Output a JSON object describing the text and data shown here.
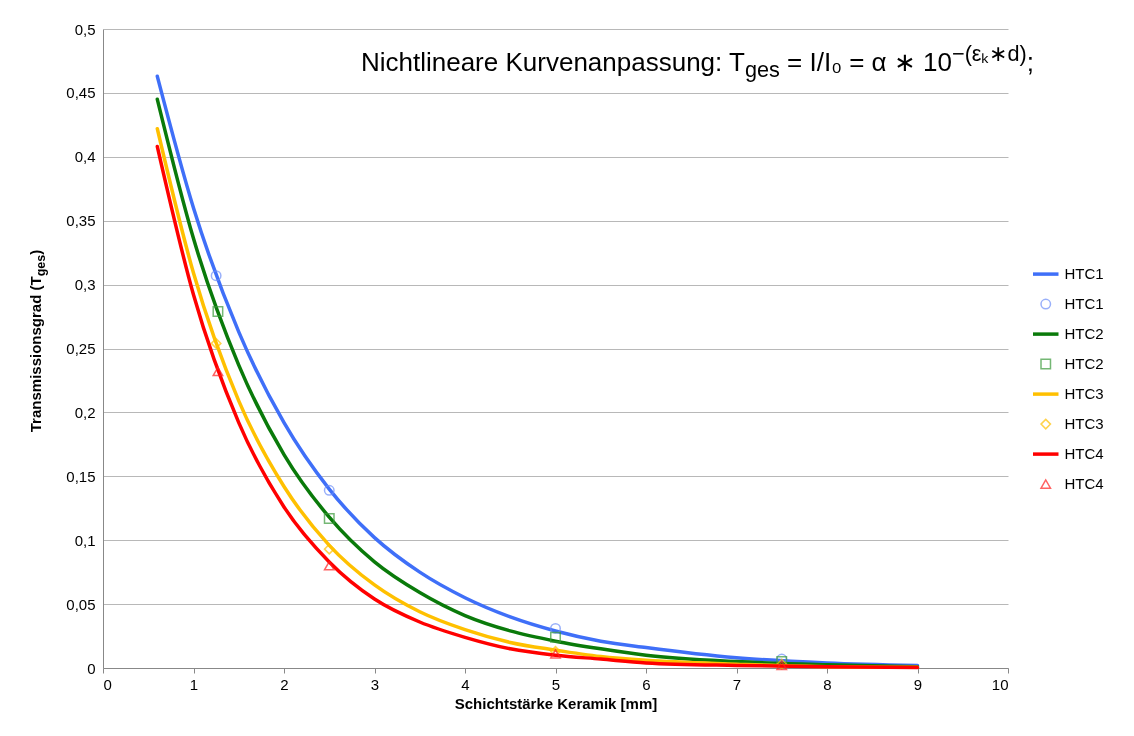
{
  "chart_data": {
    "type": "line",
    "title": "Nichtlineare Kurvenanpassung: T$_{ges}$ = I/I₀ = α ∗ 10$^{−(εₖ∗d)}$;",
    "xlabel": "Schichtstärke Keramik [mm]",
    "ylabel": "Transmissionsgrad (T$_{ges}$)",
    "xlim": [
      0,
      10
    ],
    "xticks": [
      0,
      1,
      2,
      3,
      4,
      5,
      6,
      7,
      8,
      9,
      10
    ],
    "ylim": [
      0,
      0.5
    ],
    "yticks": [
      0,
      {
        "value": 0.05,
        "label": "0,05"
      },
      {
        "value": 0.1,
        "label": "0,1"
      },
      {
        "value": 0.15,
        "label": "0,15"
      },
      {
        "value": 0.2,
        "label": "0,2"
      },
      {
        "value": 0.25,
        "label": "0,25"
      },
      {
        "value": 0.3,
        "label": "0,3"
      },
      {
        "value": 0.35,
        "label": "0,35"
      },
      {
        "value": 0.4,
        "label": "0,4"
      },
      {
        "value": 0.45,
        "label": "0,45"
      },
      {
        "value": 0.5,
        "label": "0,5"
      }
    ],
    "grid": "y",
    "legend": "right",
    "series": [
      {
        "name": "HTC1",
        "color": "#3f6ff8",
        "x": [
          0.6,
          1,
          1.5,
          2,
          2.5,
          3,
          3.5,
          4,
          4.5,
          5,
          5.5,
          6,
          7,
          8,
          9
        ],
        "values": [
          0.463,
          0.36,
          0.263,
          0.192,
          0.14,
          0.102,
          0.075,
          0.055,
          0.04,
          0.029,
          0.021,
          0.016,
          0.008,
          0.004,
          0.002
        ]
      },
      {
        "name": "HTC1",
        "type": "scatter",
        "marker": "circle",
        "color": "#6f8ff8",
        "x": [
          1.25,
          2.5,
          5,
          7.5
        ],
        "values": [
          0.307,
          0.139,
          0.031,
          0.007
        ]
      },
      {
        "name": "HTC2",
        "color": "#0a7a0a",
        "x": [
          0.6,
          1,
          1.5,
          2,
          2.5,
          3,
          3.5,
          4,
          4.5,
          5,
          5.5,
          6,
          7,
          8,
          9
        ],
        "values": [
          0.445,
          0.336,
          0.237,
          0.167,
          0.118,
          0.083,
          0.059,
          0.041,
          0.029,
          0.021,
          0.015,
          0.01,
          0.005,
          0.0025,
          0.001
        ]
      },
      {
        "name": "HTC2",
        "type": "scatter",
        "marker": "square",
        "color": "#3a9a3a",
        "x": [
          1.27,
          2.5,
          5,
          7.5
        ],
        "values": [
          0.279,
          0.117,
          0.024,
          0.005
        ]
      },
      {
        "name": "HTC3",
        "color": "#ffc000",
        "x": [
          0.6,
          1,
          1.5,
          2,
          2.5,
          3,
          3.5,
          4,
          4.5,
          5,
          5.5,
          6,
          7,
          8,
          9
        ],
        "values": [
          0.422,
          0.309,
          0.209,
          0.142,
          0.096,
          0.065,
          0.044,
          0.03,
          0.02,
          0.014,
          0.009,
          0.006,
          0.003,
          0.001,
          0.0006
        ]
      },
      {
        "name": "HTC3",
        "type": "scatter",
        "marker": "diamond",
        "color": "#ffc000",
        "x": [
          1.25,
          2.5,
          5,
          7.5
        ],
        "values": [
          0.254,
          0.093,
          0.013,
          0.003
        ]
      },
      {
        "name": "HTC4",
        "color": "#ff0000",
        "x": [
          0.6,
          1,
          1.5,
          2,
          2.5,
          3,
          3.5,
          4,
          4.5,
          5,
          5.5,
          6,
          7,
          8,
          9
        ],
        "values": [
          0.408,
          0.292,
          0.192,
          0.126,
          0.083,
          0.054,
          0.036,
          0.024,
          0.015,
          0.01,
          0.007,
          0.004,
          0.002,
          0.001,
          0.0004
        ]
      },
      {
        "name": "HTC4",
        "type": "scatter",
        "marker": "triangle",
        "color": "#ff2020",
        "x": [
          1.27,
          2.5,
          5,
          7.5
        ],
        "values": [
          0.232,
          0.08,
          0.011,
          0.002
        ]
      }
    ]
  }
}
